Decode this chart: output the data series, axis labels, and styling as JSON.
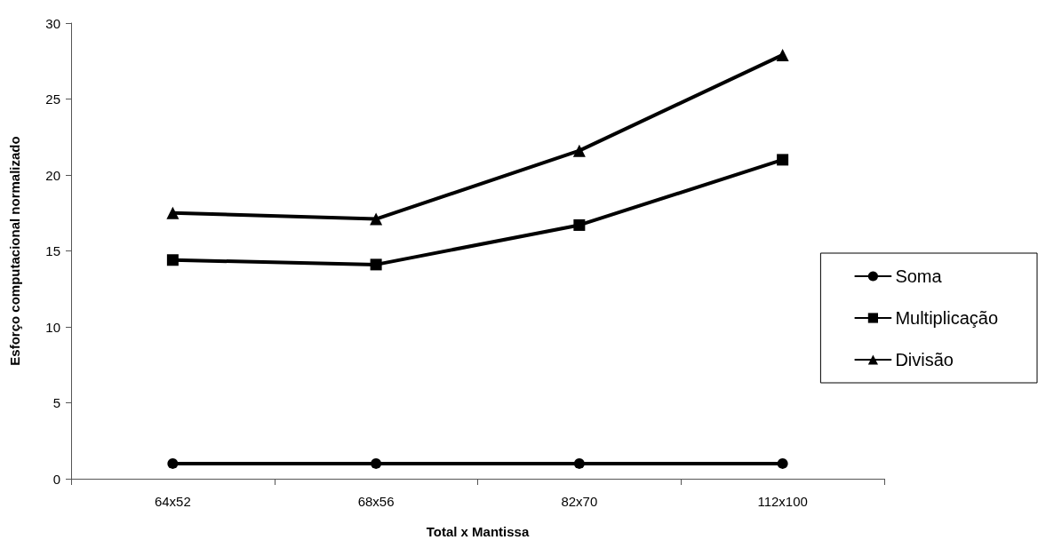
{
  "chart_data": {
    "type": "line",
    "xlabel": "Total x Mantissa",
    "ylabel": "Esforço computacional normalizado",
    "categories": [
      "64x52",
      "68x56",
      "82x70",
      "112x100"
    ],
    "series": [
      {
        "name": "Soma",
        "color": "#000000",
        "marker": "circle",
        "values": [
          1,
          1,
          1,
          1
        ]
      },
      {
        "name": "Multiplicação",
        "color": "#000000",
        "marker": "square",
        "values": [
          14.4,
          14.1,
          16.7,
          21.0
        ]
      },
      {
        "name": "Divisão",
        "color": "#000000",
        "marker": "triangle",
        "values": [
          17.5,
          17.1,
          21.6,
          27.9
        ]
      }
    ],
    "ylim": [
      0,
      30
    ],
    "yticks": [
      0,
      5,
      10,
      15,
      20,
      25,
      30
    ],
    "grid": false,
    "legend": "right",
    "line_style": "solid"
  }
}
